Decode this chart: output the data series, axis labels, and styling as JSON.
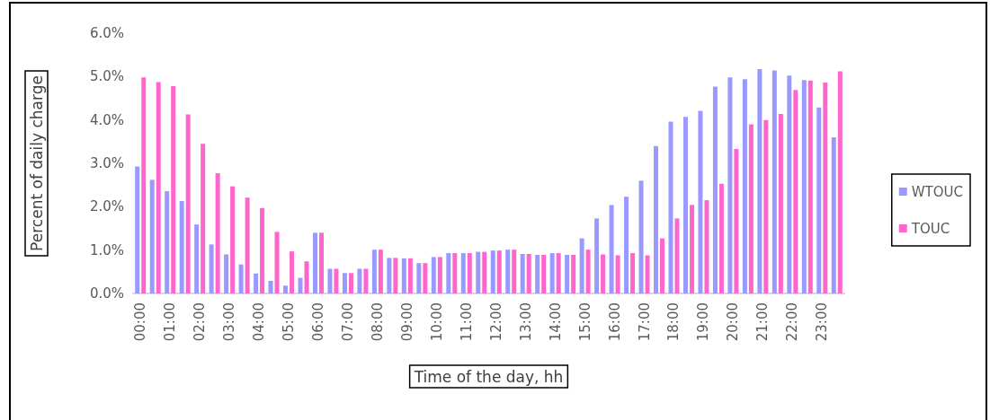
{
  "chart_data": {
    "type": "bar",
    "xlabel": "Time of the day, hh",
    "ylabel": "Percent of daily charge",
    "categories": [
      "00:00",
      null,
      "01:00",
      null,
      "02:00",
      null,
      "03:00",
      null,
      "04:00",
      null,
      "05:00",
      null,
      "06:00",
      null,
      "07:00",
      null,
      "08:00",
      null,
      "09:00",
      null,
      "10:00",
      null,
      "11:00",
      null,
      "12:00",
      null,
      "13:00",
      null,
      "14:00",
      null,
      "15:00",
      null,
      "16:00",
      null,
      "17:00",
      null,
      "18:00",
      null,
      "19:00",
      null,
      "20:00",
      null,
      "21:00",
      null,
      "22:00",
      null,
      "23:00",
      null
    ],
    "series": [
      {
        "name": "WTOUC",
        "color": "#9999ff",
        "values": [
          2.93,
          2.62,
          2.36,
          2.13,
          1.59,
          1.13,
          0.9,
          0.67,
          0.46,
          0.29,
          0.18,
          0.36,
          1.4,
          0.57,
          0.47,
          0.57,
          1.01,
          0.82,
          0.81,
          0.7,
          0.84,
          0.93,
          0.93,
          0.96,
          0.99,
          1.01,
          0.91,
          0.89,
          0.93,
          0.89,
          1.27,
          1.73,
          2.04,
          2.23,
          2.6,
          3.4,
          3.96,
          4.07,
          4.21,
          4.77,
          4.98,
          4.94,
          5.17,
          5.14,
          5.02,
          4.92,
          4.29,
          3.6
        ]
      },
      {
        "name": "TOUC",
        "color": "#ff66cc",
        "values": [
          4.98,
          4.87,
          4.78,
          4.13,
          3.45,
          2.77,
          2.47,
          2.21,
          1.97,
          1.42,
          0.97,
          0.74,
          1.4,
          0.57,
          0.47,
          0.57,
          1.01,
          0.82,
          0.81,
          0.7,
          0.84,
          0.93,
          0.93,
          0.96,
          0.99,
          1.01,
          0.91,
          0.89,
          0.93,
          0.89,
          1.01,
          0.9,
          0.88,
          0.93,
          0.88,
          1.27,
          1.73,
          2.04,
          2.15,
          2.53,
          3.33,
          3.9,
          4.0,
          4.14,
          4.69,
          4.91,
          4.86,
          5.12
        ]
      }
    ],
    "ylim": [
      0,
      6
    ],
    "yticks": [
      {
        "value": 0,
        "label": "0.0%"
      },
      {
        "value": 1,
        "label": "1.0%"
      },
      {
        "value": 2,
        "label": "2.0%"
      },
      {
        "value": 3,
        "label": "3.0%"
      },
      {
        "value": 4,
        "label": "4.0%"
      },
      {
        "value": 5,
        "label": "5.0%"
      },
      {
        "value": 6,
        "label": "6.0%"
      }
    ],
    "grid": false,
    "legend": "right"
  }
}
